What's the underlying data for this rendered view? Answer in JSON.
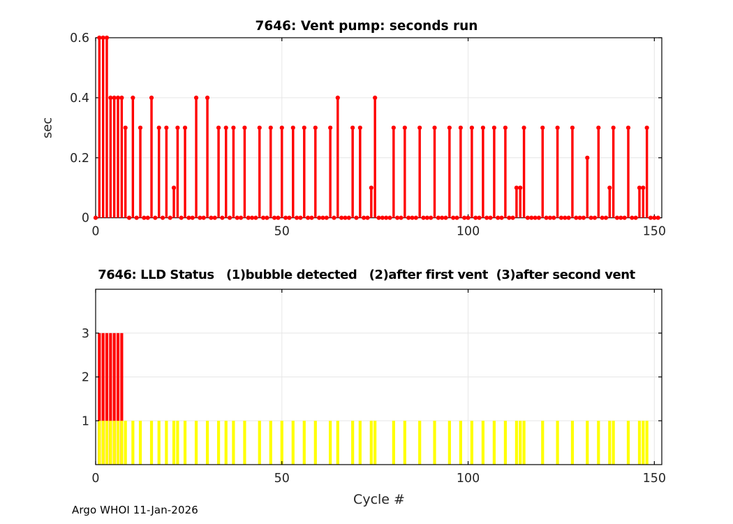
{
  "figure": {
    "footer": "Argo WHOI 11-Jan-2026"
  },
  "chart_data": [
    {
      "type": "stem",
      "title": "7646: Vent pump: seconds run",
      "xlabel": "",
      "ylabel": "sec",
      "series_color": "#ff0000",
      "grid": true,
      "xlim": [
        0,
        152
      ],
      "ylim": [
        0,
        0.6
      ],
      "xticks": [
        0,
        50,
        100,
        150
      ],
      "xticklabels": [
        "0",
        "50",
        "100",
        "150"
      ],
      "yticks": [
        0,
        0.2,
        0.4,
        0.6
      ],
      "yticklabels": [
        "0",
        "0.2",
        "0.4",
        "0.6"
      ],
      "x_start_cycle": 0,
      "values": [
        0,
        0.6,
        0.6,
        0.6,
        0.4,
        0.4,
        0.4,
        0.4,
        0.3,
        0,
        0.4,
        0,
        0.3,
        0,
        0,
        0.4,
        0,
        0.3,
        0,
        0.3,
        0,
        0.1,
        0.3,
        0,
        0.3,
        0,
        0,
        0.4,
        0,
        0,
        0.4,
        0,
        0,
        0.3,
        0,
        0.3,
        0,
        0.3,
        0,
        0,
        0.3,
        0,
        0,
        0,
        0.3,
        0,
        0,
        0.3,
        0,
        0,
        0.3,
        0,
        0,
        0.3,
        0,
        0,
        0.3,
        0,
        0,
        0.3,
        0,
        0,
        0,
        0.3,
        0,
        0.4,
        0,
        0,
        0,
        0.3,
        0,
        0.3,
        0,
        0,
        0.1,
        0.4,
        0,
        0,
        0,
        0,
        0.3,
        0,
        0,
        0.3,
        0,
        0,
        0,
        0.3,
        0,
        0,
        0,
        0.3,
        0,
        0,
        0,
        0.3,
        0,
        0,
        0.3,
        0,
        0,
        0.3,
        0,
        0,
        0.3,
        0,
        0,
        0.3,
        0,
        0,
        0.3,
        0,
        0,
        0.1,
        0.1,
        0.3,
        0,
        0,
        0,
        0,
        0.3,
        0,
        0,
        0,
        0.3,
        0,
        0,
        0,
        0.3,
        0,
        0,
        0,
        0.2,
        0,
        0,
        0.3,
        0,
        0,
        0.1,
        0.3,
        0,
        0,
        0,
        0.3,
        0,
        0,
        0.1,
        0.1,
        0.3,
        0,
        0,
        0
      ]
    },
    {
      "type": "bar",
      "title": "7646: LLD Status   (1)bubble detected   (2)after first vent  (3)after second vent",
      "xlabel": "Cycle #",
      "ylabel": "",
      "grid": true,
      "xlim": [
        0,
        152
      ],
      "ylim": [
        0,
        4
      ],
      "xticks": [
        0,
        50,
        100,
        150
      ],
      "xticklabels": [
        "0",
        "50",
        "100",
        "150"
      ],
      "yticks": [
        1,
        2,
        3
      ],
      "yticklabels": [
        "1",
        "2",
        "3"
      ],
      "series": [
        {
          "name": "after second vent",
          "color": "#ff0000",
          "value": 3,
          "cycles": [
            1,
            2,
            3,
            4,
            5,
            6,
            7
          ]
        },
        {
          "name": "bubble detected",
          "color": "#ffff00",
          "value": 1,
          "cycles": [
            1,
            2,
            3,
            4,
            5,
            6,
            7,
            8,
            10,
            12,
            15,
            17,
            19,
            21,
            22,
            24,
            27,
            30,
            33,
            35,
            37,
            40,
            44,
            47,
            50,
            53,
            56,
            59,
            63,
            65,
            69,
            71,
            74,
            75,
            80,
            83,
            87,
            91,
            95,
            98,
            101,
            104,
            107,
            110,
            113,
            114,
            115,
            120,
            124,
            128,
            132,
            135,
            138,
            139,
            143,
            146,
            147,
            148
          ]
        }
      ]
    }
  ],
  "style": {
    "axis_color": "#000000",
    "tick_label_color": "#262626",
    "grid_color": "#e6e6e6",
    "stem_red": "#ff0000",
    "bar_yellow": "#ffff00"
  }
}
